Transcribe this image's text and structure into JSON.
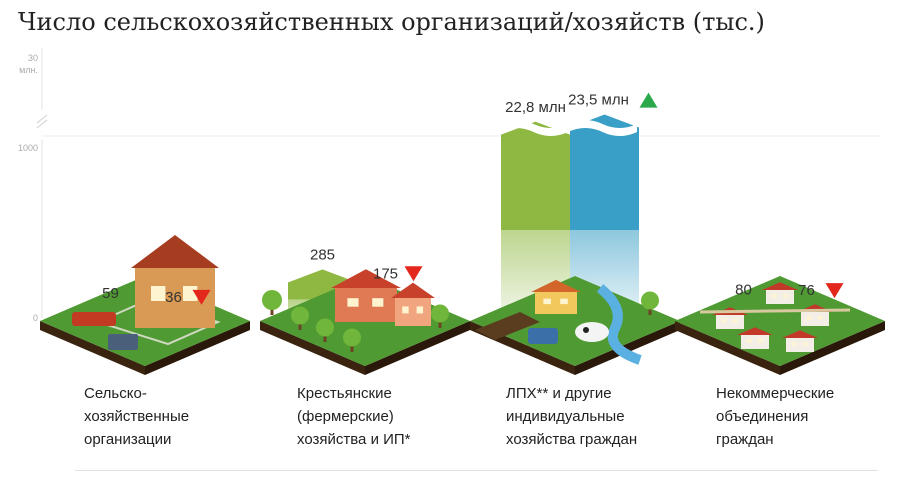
{
  "title": "Число сельскохозяйственных организаций/хозяйств  (тыс.)",
  "y_axis": {
    "ticks": [
      "0",
      "1000"
    ],
    "top_tick": "30",
    "top_unit": "млн."
  },
  "colors": {
    "green": "#8fb842",
    "blue": "#3a9fc6",
    "up": "#2aa84a",
    "down": "#e3271d",
    "ground": "#4f9a32",
    "soil": "#3a2410"
  },
  "chart_data": {
    "type": "bar",
    "title": "Число сельскохозяйственных организаций/хозяйств  (тыс.)",
    "xlabel": "",
    "ylabel": "",
    "categories": [
      "Сельско-хозяйственные организации",
      "Крестьянские (фермерские) хозяйства и ИП*",
      "ЛПХ** и другие индивидуальные хозяйства граждан",
      "Некоммерческие объединения граждан"
    ],
    "series": [
      {
        "values": [
          59,
          285,
          22800,
          80
        ]
      },
      {
        "values": [
          36,
          175,
          23500,
          76
        ]
      }
    ],
    "value_labels": [
      [
        "59",
        "285",
        "22,8 млн",
        "80"
      ],
      [
        "36",
        "175",
        "23,5 млн",
        "76"
      ]
    ],
    "change": [
      "down",
      "down",
      "up",
      "down"
    ],
    "axis_break": true,
    "ylim": [
      0,
      1000
    ],
    "upper_ylim": [
      22000,
      30000
    ],
    "legend": "none",
    "grid": false
  },
  "categories": [
    {
      "lines": [
        "Сельско-",
        "хозяйственные",
        "организации"
      ]
    },
    {
      "lines": [
        "Крестьянские",
        "(фермерские)",
        "хозяйства и ИП*"
      ]
    },
    {
      "lines": [
        "ЛПХ** и другие",
        "индивидуальные",
        "хозяйства граждан"
      ]
    },
    {
      "lines": [
        "Некоммерческие",
        "объединения",
        "граждан"
      ]
    }
  ]
}
